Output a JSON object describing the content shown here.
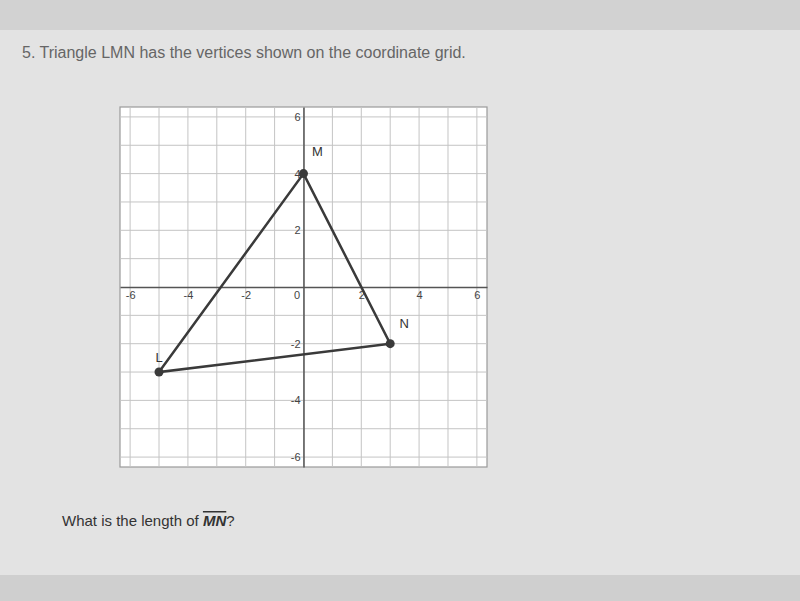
{
  "chart_data": {
    "type": "polygon",
    "title": "5. Triangle LMN has the vertices shown on the coordinate grid.",
    "annotations": [
      "What is the length of MN?"
    ],
    "x": [
      -5,
      0,
      3
    ],
    "values": [
      -3,
      4,
      -2
    ],
    "labels": [
      "L",
      "M",
      "N"
    ],
    "color": "#3a3a3a",
    "marker": "circle",
    "xlim": [
      -6.35,
      6.35
    ],
    "ylim": [
      -6.35,
      6.35
    ],
    "xticks": [
      -6,
      -4,
      -2,
      0,
      2,
      4,
      6
    ],
    "yticks": [
      -6,
      -4,
      -2,
      2,
      4,
      6
    ],
    "xminor": [
      -5,
      -3,
      -1,
      1,
      3,
      5
    ],
    "yminor": [
      -5,
      -3,
      -1,
      1,
      3,
      5
    ],
    "grid": true
  }
}
